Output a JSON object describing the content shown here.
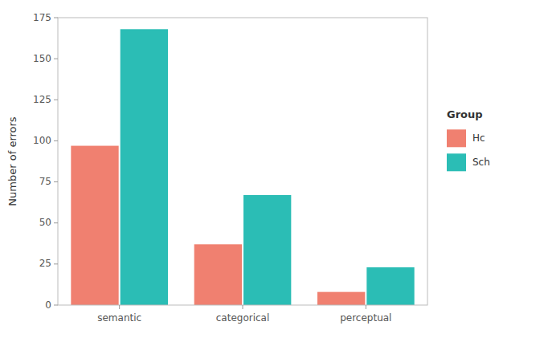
{
  "chart_data": {
    "type": "bar",
    "categories": [
      "semantic",
      "categorical",
      "perceptual"
    ],
    "series": [
      {
        "name": "Hc",
        "color": "#F08070",
        "values": [
          97,
          37,
          8
        ]
      },
      {
        "name": "Sch",
        "color": "#2BBDB5",
        "values": [
          168,
          67,
          23
        ]
      }
    ],
    "ylabel": "Number of errors",
    "ylim": [
      0,
      175
    ],
    "yticks": [
      0,
      25,
      50,
      75,
      100,
      125,
      150,
      175
    ],
    "legend_title": "Group",
    "legend": "right",
    "grid": false
  }
}
